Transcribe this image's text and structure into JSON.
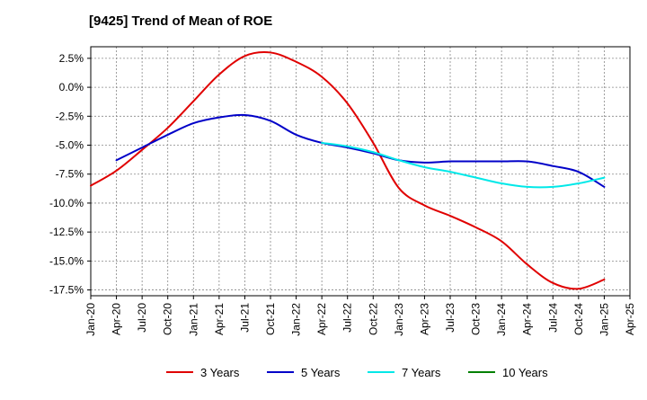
{
  "chart_data": {
    "type": "line",
    "title": "[9425]  Trend of Mean of ROE",
    "xlabel": "",
    "ylabel": "",
    "ylim": [
      -18.0,
      3.5
    ],
    "yticks": [
      2.5,
      0.0,
      -2.5,
      -5.0,
      -7.5,
      -10.0,
      -12.5,
      -15.0,
      -17.5
    ],
    "ytick_labels": [
      "2.5%",
      "0.0%",
      "-2.5%",
      "-5.0%",
      "-7.5%",
      "-10.0%",
      "-12.5%",
      "-15.0%",
      "-17.5%"
    ],
    "xticks": [
      "Jan-20",
      "Apr-20",
      "Jul-20",
      "Oct-20",
      "Jan-21",
      "Apr-21",
      "Jul-21",
      "Oct-21",
      "Jan-22",
      "Apr-22",
      "Jul-22",
      "Oct-22",
      "Jan-23",
      "Apr-23",
      "Jul-23",
      "Oct-23",
      "Jan-24",
      "Apr-24",
      "Jul-24",
      "Oct-24",
      "Jan-25",
      "Apr-25"
    ],
    "grid": true,
    "legend_position": "bottom",
    "series": [
      {
        "name": "3 Years",
        "color": "#e00000",
        "x": [
          0,
          1,
          2,
          3,
          4,
          5,
          6,
          7,
          8,
          9,
          10,
          11,
          12,
          13,
          14,
          15,
          16,
          17,
          18,
          19,
          20
        ],
        "values": [
          -8.5,
          -7.2,
          -5.4,
          -3.5,
          -1.2,
          1.1,
          2.7,
          3.0,
          2.2,
          0.9,
          -1.4,
          -4.8,
          -8.7,
          -10.2,
          -11.1,
          -12.1,
          -13.3,
          -15.3,
          -16.9,
          -17.4,
          -16.6
        ]
      },
      {
        "name": "5 Years",
        "color": "#0000c8",
        "x": [
          1,
          2,
          3,
          4,
          5,
          6,
          7,
          8,
          9,
          10,
          11,
          12,
          13,
          14,
          15,
          16,
          17,
          18,
          19,
          20
        ],
        "values": [
          -6.3,
          -5.2,
          -4.1,
          -3.1,
          -2.6,
          -2.4,
          -2.9,
          -4.1,
          -4.8,
          -5.2,
          -5.7,
          -6.3,
          -6.5,
          -6.4,
          -6.4,
          -6.4,
          -6.4,
          -6.8,
          -7.3,
          -8.6
        ]
      },
      {
        "name": "7 Years",
        "color": "#00e8e8",
        "x": [
          9,
          10,
          11,
          12,
          13,
          14,
          15,
          16,
          17,
          18,
          19,
          20
        ],
        "values": [
          -4.8,
          -5.1,
          -5.6,
          -6.3,
          -6.9,
          -7.3,
          -7.8,
          -8.3,
          -8.6,
          -8.6,
          -8.3,
          -7.8
        ]
      },
      {
        "name": "10 Years",
        "color": "#008000",
        "x": [],
        "values": []
      }
    ]
  }
}
